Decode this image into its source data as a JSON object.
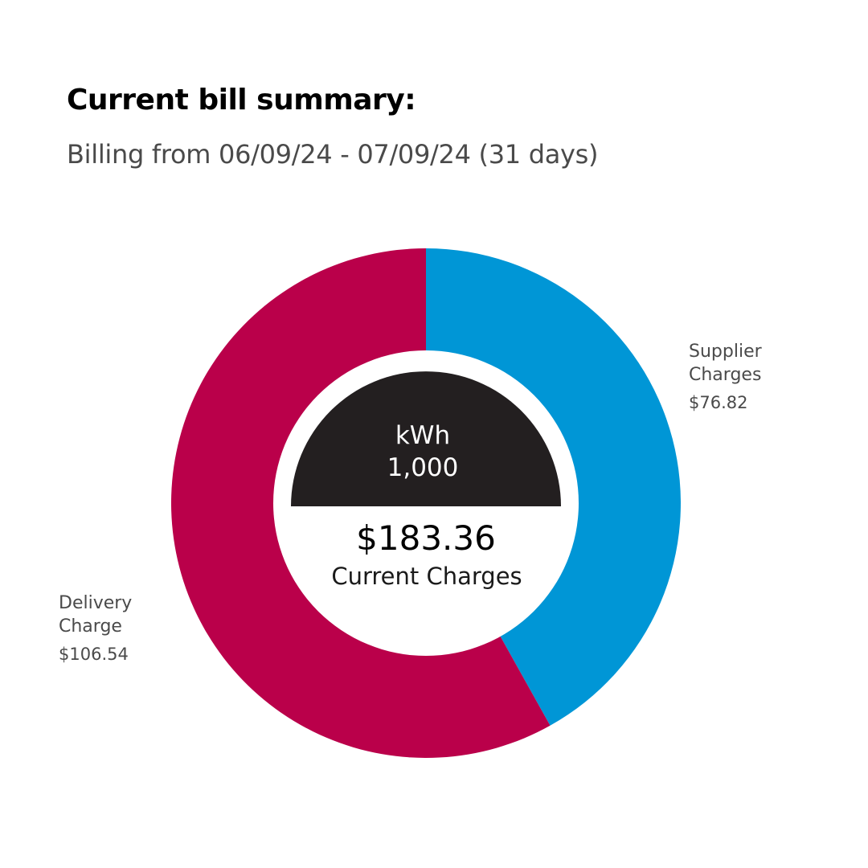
{
  "header": {
    "title": "Current bill summary:",
    "subtitle": "Billing from 06/09/24 - 07/09/24 (31 days)"
  },
  "center": {
    "usage_label": "kWh",
    "usage_value": "1,000",
    "total_amount": "$183.36",
    "total_label": "Current Charges"
  },
  "colors": {
    "supplier": "#0096D6",
    "delivery": "#BA004A",
    "usage_cap": "#231F20",
    "background": "#FFFFFF"
  },
  "chart_data": {
    "type": "pie",
    "style": "donut",
    "slices": [
      {
        "label_lines": [
          "Supplier",
          "Charges"
        ],
        "display_value": "$76.82",
        "value": 76.82,
        "color": "#0096D6"
      },
      {
        "label_lines": [
          "Delivery",
          "Charge"
        ],
        "display_value": "$106.54",
        "value": 106.54,
        "color": "#BA004A"
      }
    ],
    "total": 183.36,
    "legend": "none"
  }
}
